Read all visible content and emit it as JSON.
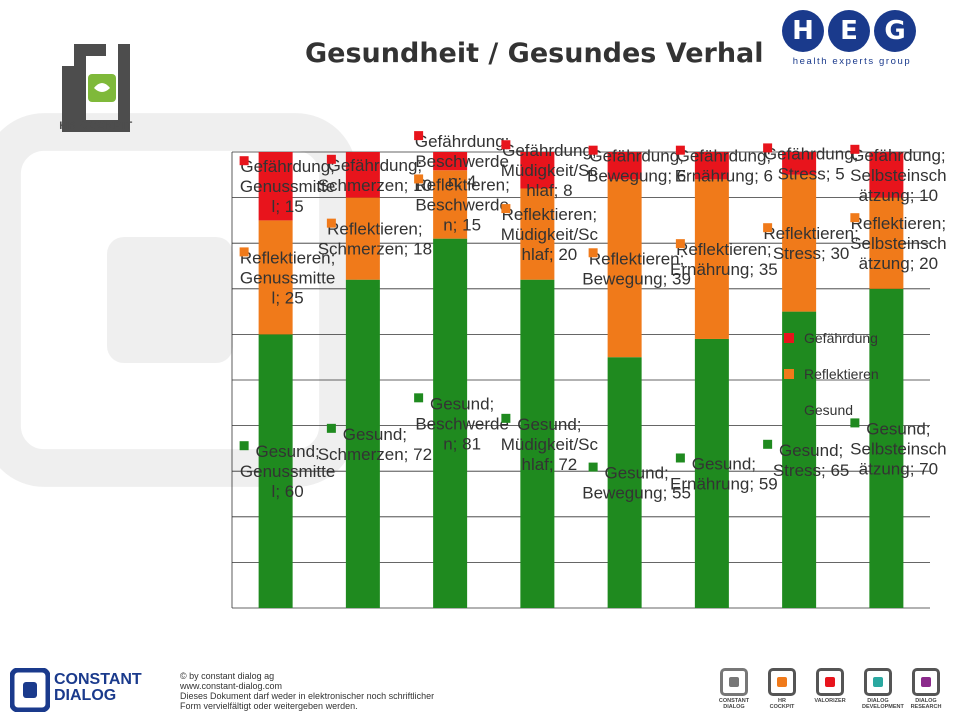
{
  "page": {
    "title": "Gesundheit / Gesundes Verhal",
    "hr_logo_text": "HR COCKPIT",
    "heg_letters": [
      "H",
      "E",
      "G"
    ],
    "heg_subtitle": "health experts group",
    "footer_brand": [
      "CONSTANT",
      "DIALOG"
    ],
    "footer_lines": [
      "© by constant dialog ag",
      "www.constant-dialog.com",
      "Dieses Dokument darf weder in elektronischer noch schriftlicher",
      "Form vervielfältigt oder weitergeben werden."
    ],
    "footer_icons": [
      "CONSTANT DIALOG",
      "HR COCKPIT",
      "VALORIZER",
      "DIALOG DEVELOPMENT",
      "DIALOG RESEARCH"
    ]
  },
  "colors": {
    "gesund": "#1f8a1f",
    "reflektieren": "#f07a1a",
    "gefaehrdung": "#e8141c",
    "heg_blue": "#1a3a8c",
    "hr_green": "#7fb93a"
  },
  "chart_data": {
    "type": "bar",
    "stacked": true,
    "categories": [
      "Genussmittel",
      "Schmerzen",
      "Beschwerden",
      "Müdigkeit/Schlaf",
      "Bewegung",
      "Ernährung",
      "Stress",
      "Selbsteinschätzung"
    ],
    "ylim": [
      0,
      100
    ],
    "grid": true,
    "legend_position": "right",
    "series": [
      {
        "name": "Gesund",
        "values": [
          60,
          72,
          81,
          72,
          55,
          59,
          65,
          70
        ]
      },
      {
        "name": "Reflektieren",
        "values": [
          25,
          18,
          15,
          20,
          39,
          35,
          30,
          20
        ]
      },
      {
        "name": "Gefährdung",
        "values": [
          15,
          10,
          4,
          8,
          6,
          6,
          5,
          10
        ]
      }
    ],
    "data_labels": [
      [
        "Gesund; Genussmitte l; 60",
        "Reflektieren; Genussmitte l; 25",
        "Gefährdung; Genussmitte l; 15"
      ],
      [
        "Gesund; Schmerzen; 72",
        "Reflektieren; Schmerzen; 18",
        "Gefährdung; Schmerzen; 10"
      ],
      [
        "Gesund; Beschwerde n; 81",
        "Reflektieren; Beschwerde n; 15",
        "Gefährdung; Beschwerde n; 4"
      ],
      [
        "Gesund; Müdigkeit/Sc hlaf; 72",
        "Reflektieren; Müdigkeit/Sc hlaf; 20",
        "Gefährdung; Müdigkeit/Sc hlaf; 8"
      ],
      [
        "Gesund; Bewegung; 55",
        "Reflektieren; Bewegung; 39",
        "Gefährdung; Bewegung; 6"
      ],
      [
        "Gesund; Ernährung; 59",
        "Reflektieren; Ernährung; 35",
        "Gefährdung; Ernährung; 6"
      ],
      [
        "Gesund; Stress; 65",
        "Reflektieren; Stress; 30",
        "Gefährdung; Stress; 5"
      ],
      [
        "Gesund; Selbsteinsch ätzung; 70",
        "Reflektieren; Selbsteinsch ätzung; 20",
        "Gefährdung; Selbsteinsch ätzung; 10"
      ]
    ]
  }
}
